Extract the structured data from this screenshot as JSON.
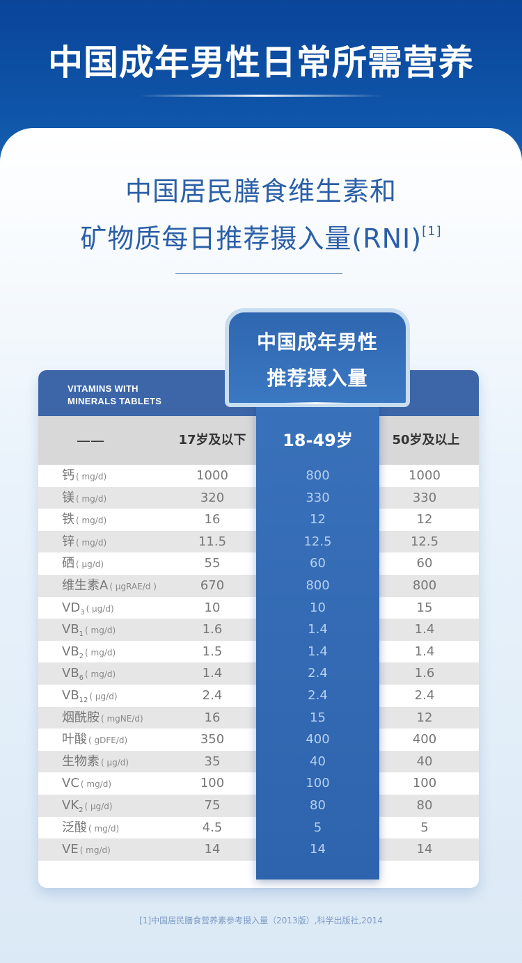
{
  "banner": {
    "title": "中国成年男性日常所需营养"
  },
  "heading": {
    "line1": "中国居民膳食维生素和",
    "line2": "矿物质每日推荐摄入量(RNI)",
    "ref": "[1]"
  },
  "highlight": {
    "title_line1": "中国成年男性",
    "title_line2": "推荐摄入量",
    "age": "18-49岁"
  },
  "table": {
    "brand_line1": "VITAMINS WITH",
    "brand_line2": "MINERALS TABLETS",
    "col_dash": "——",
    "col_17": "17岁及以下",
    "col_50": "50岁及以上",
    "rows": [
      {
        "name": "钙",
        "sub": "",
        "unit": "( mg/d)",
        "v17": "1000",
        "v18": "800",
        "v50": "1000"
      },
      {
        "name": "镁",
        "sub": "",
        "unit": "( mg/d)",
        "v17": "320",
        "v18": "330",
        "v50": "330"
      },
      {
        "name": "铁",
        "sub": "",
        "unit": "( mg/d)",
        "v17": "16",
        "v18": "12",
        "v50": "12"
      },
      {
        "name": "锌",
        "sub": "",
        "unit": "( mg/d)",
        "v17": "11.5",
        "v18": "12.5",
        "v50": "12.5"
      },
      {
        "name": "硒",
        "sub": "",
        "unit": "( μg/d)",
        "v17": "55",
        "v18": "60",
        "v50": "60"
      },
      {
        "name": "维生素A",
        "sub": "",
        "unit": "( μgRAE/d )",
        "v17": "670",
        "v18": "800",
        "v50": "800"
      },
      {
        "name": "VD",
        "sub": "3",
        "unit": "( μg/d)",
        "v17": "10",
        "v18": "10",
        "v50": "15"
      },
      {
        "name": "VB",
        "sub": "1",
        "unit": "( mg/d)",
        "v17": "1.6",
        "v18": "1.4",
        "v50": "1.4"
      },
      {
        "name": "VB",
        "sub": "2",
        "unit": "( mg/d)",
        "v17": "1.5",
        "v18": "1.4",
        "v50": "1.4"
      },
      {
        "name": "VB",
        "sub": "6",
        "unit": "( mg/d)",
        "v17": "1.4",
        "v18": "2.4",
        "v50": "1.6"
      },
      {
        "name": "VB",
        "sub": "12",
        "unit": "( μg/d)",
        "v17": "2.4",
        "v18": "2.4",
        "v50": "2.4"
      },
      {
        "name": "烟酰胺",
        "sub": "",
        "unit": "( mgNE/d)",
        "v17": "16",
        "v18": "15",
        "v50": "12"
      },
      {
        "name": "叶酸",
        "sub": "",
        "unit": "( gDFE/d)",
        "v17": "350",
        "v18": "400",
        "v50": "400"
      },
      {
        "name": "生物素",
        "sub": "",
        "unit": "( μg/d)",
        "v17": "35",
        "v18": "40",
        "v50": "40"
      },
      {
        "name": "VC",
        "sub": "",
        "unit": "( mg/d)",
        "v17": "100",
        "v18": "100",
        "v50": "100"
      },
      {
        "name": "VK",
        "sub": "2",
        "unit": "( μg/d)",
        "v17": "75",
        "v18": "80",
        "v50": "80"
      },
      {
        "name": "泛酸",
        "sub": "",
        "unit": "( mg/d)",
        "v17": "4.5",
        "v18": "5",
        "v50": "5"
      },
      {
        "name": "VE",
        "sub": "",
        "unit": "( mg/d)",
        "v17": "14",
        "v18": "14",
        "v50": "14"
      }
    ]
  },
  "footnote": "[1]中国居民膳食营养素参考摄入量（2013版）,科学出版社,2014"
}
